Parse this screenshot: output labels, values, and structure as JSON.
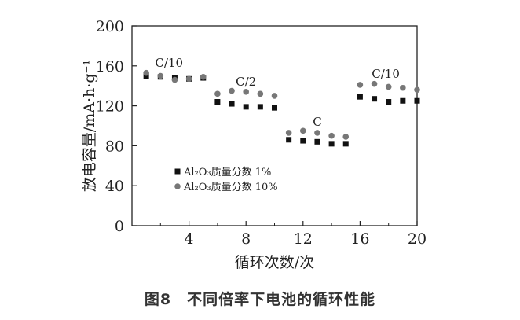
{
  "chart_data": {
    "type": "scatter",
    "x": [
      1,
      2,
      3,
      4,
      5,
      6,
      7,
      8,
      9,
      10,
      11,
      12,
      13,
      14,
      15,
      16,
      17,
      18,
      19,
      20
    ],
    "series": [
      {
        "name": "Al₂O₃质量分数 1%",
        "marker": "square",
        "color": "#111111",
        "values": [
          150,
          149,
          148,
          147,
          148,
          124,
          122,
          119,
          119,
          118,
          86,
          85,
          84,
          82,
          82,
          129,
          127,
          124,
          125,
          125
        ]
      },
      {
        "name": "Al₂O₃质量分数 10%",
        "marker": "circle",
        "color": "#777777",
        "values": [
          153,
          150,
          146,
          147,
          149,
          132,
          135,
          134,
          132,
          130,
          93,
          95,
          93,
          90,
          89,
          141,
          142,
          139,
          138,
          136
        ]
      }
    ],
    "xlabel": "循环次数/次",
    "ylabel": "放电容量/mA·h·g⁻¹",
    "xlim": [
      0,
      20
    ],
    "ylim": [
      0,
      200
    ],
    "xticks": [
      4,
      8,
      12,
      16,
      20
    ],
    "yticks": [
      0,
      40,
      80,
      120,
      160,
      200
    ],
    "grid": false,
    "legend_position": "lower-left",
    "annotations": [
      {
        "text": "C/10",
        "x": 2.6,
        "y": 159
      },
      {
        "text": "C/2",
        "x": 8.0,
        "y": 140
      },
      {
        "text": "C",
        "x": 13.0,
        "y": 100
      },
      {
        "text": "C/10",
        "x": 17.8,
        "y": 148
      }
    ]
  },
  "caption": "图8　不同倍率下电池的循环性能"
}
